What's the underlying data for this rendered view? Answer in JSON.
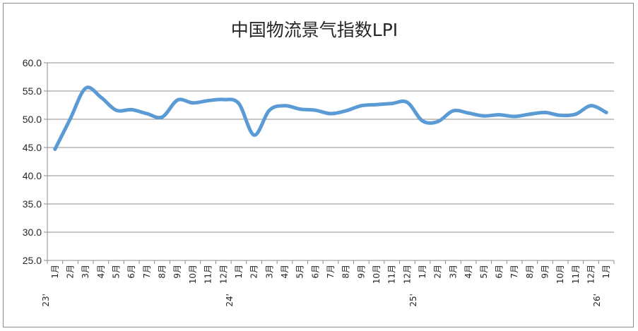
{
  "chart_data": {
    "type": "line",
    "title": "中国物流景气指数LPI",
    "xlabel": "",
    "ylabel": "",
    "ylim": [
      25.0,
      60.0
    ],
    "yticks": [
      "25.0",
      "30.0",
      "35.0",
      "40.0",
      "45.0",
      "50.0",
      "55.0",
      "60.0"
    ],
    "grid": true,
    "legend": "none",
    "line_color": "#5b9bd5",
    "categories": [
      "1月",
      "2月",
      "3月",
      "4月",
      "5月",
      "6月",
      "7月",
      "8月",
      "9月",
      "10月",
      "11月",
      "12月",
      "1月",
      "2月",
      "3月",
      "4月",
      "5月",
      "6月",
      "7月",
      "8月",
      "9月",
      "10月",
      "11月",
      "12月",
      "1月",
      "2月",
      "3月",
      "4月",
      "5月",
      "6月",
      "7月",
      "8月",
      "9月",
      "10月",
      "11月",
      "12月",
      "1月"
    ],
    "year_labels": [
      {
        "text": "23'",
        "index": 0
      },
      {
        "text": "24'",
        "index": 12
      },
      {
        "text": "25'",
        "index": 24
      },
      {
        "text": "26'",
        "index": 36
      }
    ],
    "series": [
      {
        "values": [
          44.7,
          50.1,
          55.5,
          53.9,
          51.6,
          51.7,
          51.0,
          50.4,
          53.4,
          52.9,
          53.3,
          53.5,
          52.8,
          47.2,
          51.6,
          52.4,
          51.8,
          51.6,
          51.0,
          51.5,
          52.4,
          52.6,
          52.8,
          53.0,
          49.7,
          49.6,
          51.5,
          51.1,
          50.6,
          50.8,
          50.5,
          50.9,
          51.2,
          50.7,
          50.9,
          52.4,
          51.2
        ]
      }
    ]
  }
}
